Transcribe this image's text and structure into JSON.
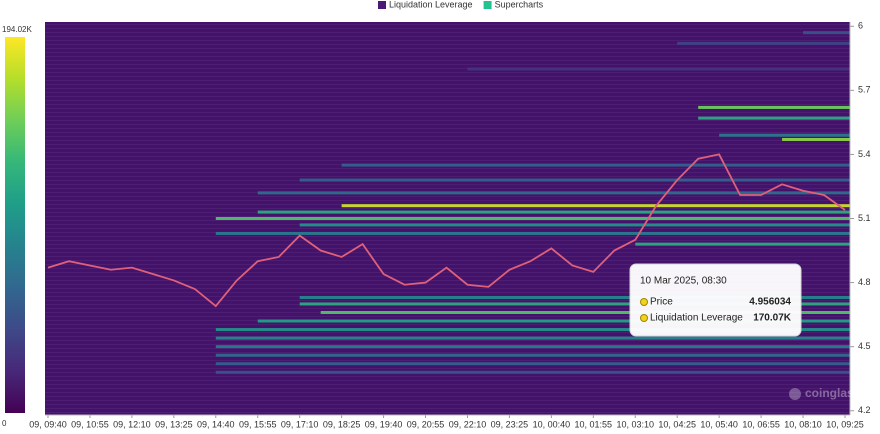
{
  "chart_data": {
    "type": "heatmap",
    "categories": [
      "09, 09:40",
      null,
      "09, 10:55",
      null,
      "09, 12:10",
      null,
      "09, 13:25",
      null,
      "09, 14:40",
      null,
      "09, 15:55",
      null,
      "09, 17:10",
      null,
      "09, 18:25",
      null,
      "09, 19:40",
      null,
      "09, 20:55",
      null,
      "09, 22:10",
      null,
      "09, 23:25",
      null,
      "10, 00:40",
      null,
      "10, 01:55",
      null,
      "10, 03:10",
      null,
      "10, 04:25",
      null,
      "10, 05:40",
      null,
      "10, 06:55",
      null,
      "10, 08:10",
      null,
      "10, 09:25"
    ],
    "series": [
      {
        "name": "Liquidation Leverage",
        "color": "#4a1a78",
        "levels": [
          {
            "price": 5.97,
            "start": 36,
            "value": 50000
          },
          {
            "price": 5.92,
            "start": 30,
            "value": 40000
          },
          {
            "price": 5.8,
            "start": 20,
            "value": 30000
          },
          {
            "price": 5.62,
            "start": 31,
            "value": 150000
          },
          {
            "price": 5.57,
            "start": 31,
            "value": 120000
          },
          {
            "price": 5.49,
            "start": 32,
            "value": 80000
          },
          {
            "price": 5.47,
            "start": 35,
            "value": 160000
          },
          {
            "price": 5.35,
            "start": 14,
            "value": 60000
          },
          {
            "price": 5.28,
            "start": 12,
            "value": 60000
          },
          {
            "price": 5.22,
            "start": 10,
            "value": 70000
          },
          {
            "price": 5.16,
            "start": 14,
            "value": 180000
          },
          {
            "price": 5.13,
            "start": 10,
            "value": 120000
          },
          {
            "price": 5.1,
            "start": 8,
            "value": 140000
          },
          {
            "price": 5.07,
            "start": 12,
            "value": 100000
          },
          {
            "price": 5.03,
            "start": 8,
            "value": 80000
          },
          {
            "price": 4.98,
            "start": 28,
            "value": 120000
          },
          {
            "price": 4.73,
            "start": 12,
            "value": 90000
          },
          {
            "price": 4.7,
            "start": 12,
            "value": 120000
          },
          {
            "price": 4.66,
            "start": 13,
            "value": 140000
          },
          {
            "price": 4.62,
            "start": 10,
            "value": 110000
          },
          {
            "price": 4.58,
            "start": 8,
            "value": 100000
          },
          {
            "price": 4.54,
            "start": 8,
            "value": 90000
          },
          {
            "price": 4.5,
            "start": 8,
            "value": 80000
          },
          {
            "price": 4.46,
            "start": 8,
            "value": 70000
          },
          {
            "price": 4.42,
            "start": 8,
            "value": 60000
          },
          {
            "price": 4.38,
            "start": 8,
            "value": 50000
          }
        ]
      },
      {
        "name": "Supercharts",
        "color": "#22c38e",
        "line_color": "#e0607a",
        "values": [
          4.87,
          4.9,
          4.88,
          4.86,
          4.87,
          4.84,
          4.81,
          4.77,
          4.69,
          4.81,
          4.9,
          4.92,
          5.02,
          4.95,
          4.92,
          4.98,
          4.84,
          4.79,
          4.8,
          4.87,
          4.79,
          4.78,
          4.86,
          4.9,
          4.96,
          4.88,
          4.85,
          4.95,
          5.0,
          5.16,
          5.28,
          5.38,
          5.4,
          5.21,
          5.21,
          5.26,
          5.23,
          5.21,
          5.14
        ]
      }
    ],
    "ylim": [
      4.18,
      6.02
    ],
    "yticks": [
      4.2,
      4.5,
      4.8,
      5.1,
      5.4,
      5.7,
      6
    ],
    "colorbar_lim": [
      0,
      194020
    ],
    "colorbar_ticks": [
      0,
      {
        "value": 194020,
        "label": "194.02K"
      }
    ],
    "colorscale": [
      "#440154",
      "#482878",
      "#3e4989",
      "#31688e",
      "#26828e",
      "#1f9e89",
      "#35b779",
      "#6ece58",
      "#b5de2b",
      "#fde725"
    ],
    "background": "#43126a",
    "tooltip": {
      "title": "10 Mar 2025, 08:30",
      "rows": [
        {
          "label": "Price",
          "value": "4.956034"
        },
        {
          "label": "Liquidation Leverage",
          "value": "170.07K"
        }
      ]
    },
    "watermark": "coinglass"
  }
}
